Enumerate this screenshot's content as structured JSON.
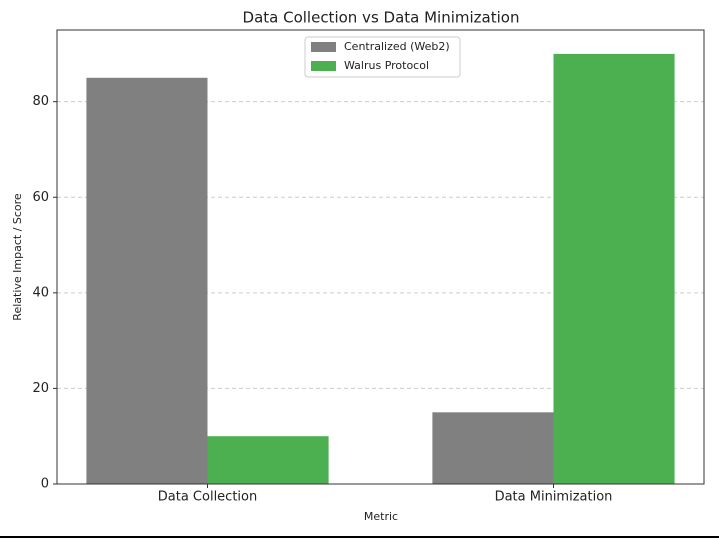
{
  "chart_data": {
    "type": "bar",
    "title": "Data Collection vs Data Minimization",
    "x_label": "Metric",
    "y_label": "Relative Impact / Score",
    "categories": [
      "Data Collection",
      "Data Minimization"
    ],
    "series": [
      {
        "name": "Centralized (Web2)",
        "color": "#808080",
        "values": [
          85,
          15
        ]
      },
      {
        "name": "Walrus Protocol",
        "color": "#4caf50",
        "values": [
          10,
          90
        ]
      }
    ],
    "ylim": [
      0,
      95
    ],
    "yticks": [
      0,
      20,
      40,
      60,
      80
    ],
    "grid": true,
    "legend": "upper center"
  }
}
